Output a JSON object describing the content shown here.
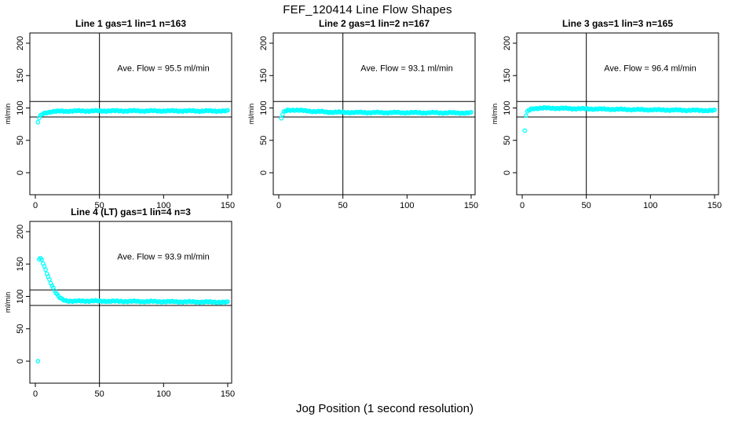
{
  "figure": {
    "title": "FEF_120414  Line Flow Shapes",
    "xlabel": "Jog Position (1 second resolution)"
  },
  "colors": {
    "points": "#00FFFF",
    "axis": "#000000",
    "text": "#000000",
    "background": "#FFFFFF"
  },
  "chart_data": [
    {
      "type": "scatter",
      "title": "Line 1 gas=1 lin=1 n=163",
      "ylabel": "ml/min",
      "annotation": "Ave. Flow =  95.5  ml/min",
      "ave_flow_ml_min": 95.5,
      "n_points": 163,
      "x_ticks": [
        0,
        50,
        100,
        150
      ],
      "y_ticks": [
        0,
        50,
        100,
        150,
        200
      ],
      "xlim": [
        -4,
        153
      ],
      "ylim": [
        -34,
        216
      ],
      "ref_lines_h": [
        110,
        86
      ],
      "ref_lines_v": [
        50
      ],
      "grid": false,
      "keypoints": [
        [
          2,
          78
        ],
        [
          3,
          84.5
        ],
        [
          4,
          87.5
        ],
        [
          5,
          89.5
        ],
        [
          6,
          91
        ],
        [
          8,
          92.5
        ],
        [
          10,
          93.5
        ],
        [
          14,
          94.5
        ],
        [
          20,
          95
        ],
        [
          30,
          95.3
        ],
        [
          60,
          95.5
        ],
        [
          100,
          95.5
        ],
        [
          150,
          95.3
        ]
      ],
      "outliers": []
    },
    {
      "type": "scatter",
      "title": "Line 2 gas=1 lin=2 n=167",
      "ylabel": "ml/min",
      "annotation": "Ave. Flow =  93.1  ml/min",
      "ave_flow_ml_min": 93.1,
      "n_points": 167,
      "x_ticks": [
        0,
        50,
        100,
        150
      ],
      "y_ticks": [
        0,
        50,
        100,
        150,
        200
      ],
      "xlim": [
        -4,
        153
      ],
      "ylim": [
        -34,
        216
      ],
      "ref_lines_h": [
        110,
        86
      ],
      "ref_lines_v": [
        50
      ],
      "grid": false,
      "keypoints": [
        [
          2,
          84
        ],
        [
          3,
          90
        ],
        [
          4,
          93.5
        ],
        [
          5,
          95
        ],
        [
          7,
          96.5
        ],
        [
          10,
          97
        ],
        [
          15,
          96.5
        ],
        [
          25,
          95
        ],
        [
          40,
          93.5
        ],
        [
          60,
          93
        ],
        [
          100,
          92.8
        ],
        [
          150,
          92.3
        ]
      ],
      "outliers": []
    },
    {
      "type": "scatter",
      "title": "Line 3 gas=1 lin=3 n=165",
      "ylabel": "ml/min",
      "annotation": "Ave. Flow =  96.4  ml/min",
      "ave_flow_ml_min": 96.4,
      "n_points": 165,
      "x_ticks": [
        0,
        50,
        100,
        150
      ],
      "y_ticks": [
        0,
        50,
        100,
        150,
        200
      ],
      "xlim": [
        -4,
        153
      ],
      "ylim": [
        -34,
        216
      ],
      "ref_lines_h": [
        110,
        86
      ],
      "ref_lines_v": [
        50
      ],
      "grid": false,
      "keypoints": [
        [
          3,
          88
        ],
        [
          4,
          93.5
        ],
        [
          5,
          96
        ],
        [
          7,
          98.5
        ],
        [
          10,
          99.5
        ],
        [
          20,
          99.8
        ],
        [
          40,
          99
        ],
        [
          70,
          98
        ],
        [
          100,
          97.2
        ],
        [
          150,
          96
        ]
      ],
      "outliers": [
        [
          2,
          65
        ]
      ]
    },
    {
      "type": "scatter",
      "title": "Line 4 (LT) gas=1 lin=4 n=3",
      "ylabel": "ml/min",
      "annotation": "Ave. Flow =  93.9  ml/min",
      "ave_flow_ml_min": 93.9,
      "n_points": 3,
      "x_ticks": [
        0,
        50,
        100,
        150
      ],
      "y_ticks": [
        0,
        50,
        100,
        150,
        200
      ],
      "xlim": [
        -4,
        153
      ],
      "ylim": [
        -34,
        216
      ],
      "ref_lines_h": [
        110,
        86
      ],
      "ref_lines_v": [
        50
      ],
      "grid": false,
      "keypoints": [
        [
          3,
          157
        ],
        [
          4,
          158
        ],
        [
          5,
          156.5
        ],
        [
          6,
          151
        ],
        [
          7,
          146
        ],
        [
          8,
          141
        ],
        [
          9,
          136
        ],
        [
          10,
          131
        ],
        [
          11,
          126
        ],
        [
          12,
          121.5
        ],
        [
          13,
          117
        ],
        [
          14,
          113
        ],
        [
          15,
          109
        ],
        [
          16,
          105.5
        ],
        [
          17,
          102.5
        ],
        [
          18,
          100
        ],
        [
          19,
          98
        ],
        [
          20,
          96.5
        ],
        [
          22,
          94.5
        ],
        [
          25,
          93.2
        ],
        [
          30,
          92.5
        ],
        [
          40,
          93
        ],
        [
          60,
          92.5
        ],
        [
          100,
          92
        ],
        [
          150,
          91
        ]
      ],
      "outliers": [
        [
          2,
          0
        ]
      ]
    }
  ]
}
